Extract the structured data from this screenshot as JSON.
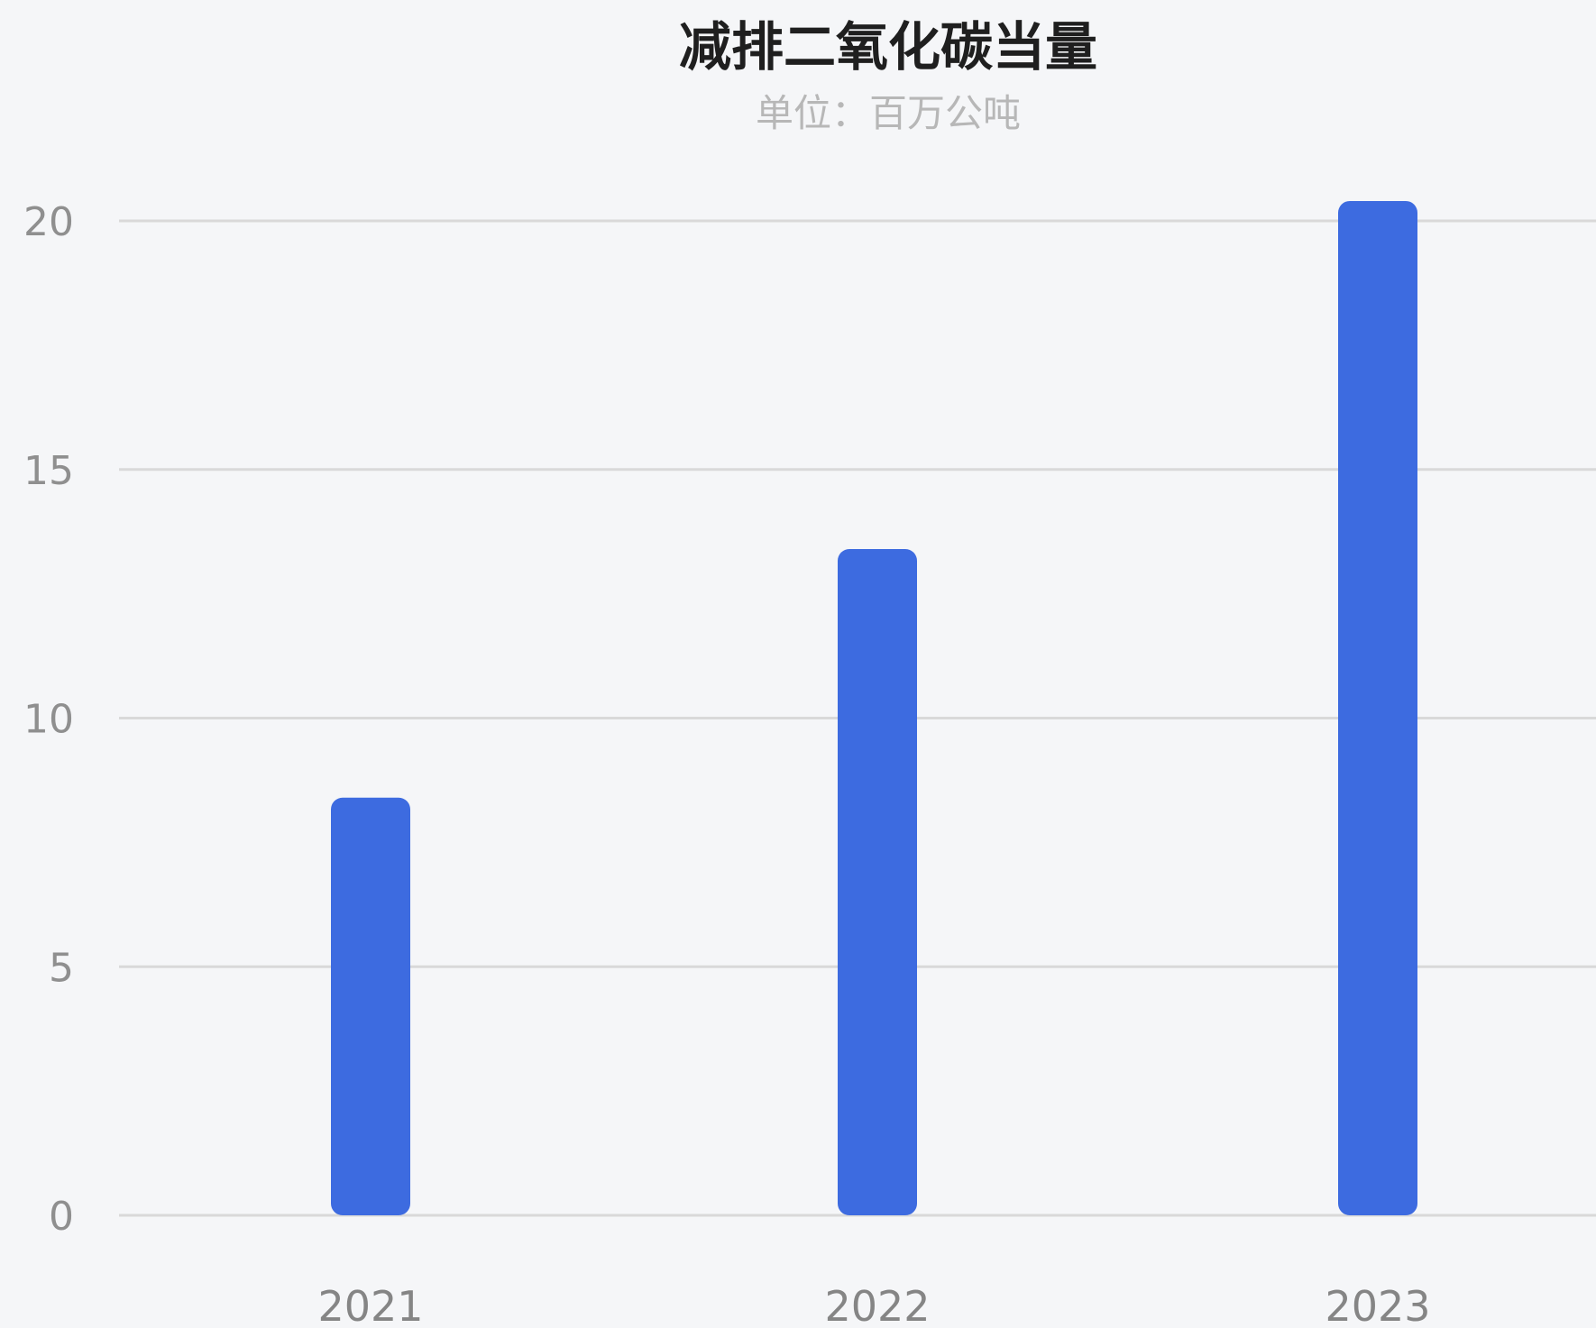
{
  "chart_data": {
    "type": "bar",
    "title": "减排二氧化碳当量",
    "subtitle": "单位：百万公吨",
    "categories": [
      "2021",
      "2022",
      "2023"
    ],
    "values": [
      8.4,
      13.4,
      20.4
    ],
    "xlabel": "",
    "ylabel": "",
    "ylim": [
      0,
      20
    ],
    "yticks": [
      0,
      5,
      10,
      15,
      20
    ],
    "grid": true,
    "legend": "none",
    "colors": {
      "bar": "#3d6be0",
      "grid": "#d9d9d9"
    }
  }
}
